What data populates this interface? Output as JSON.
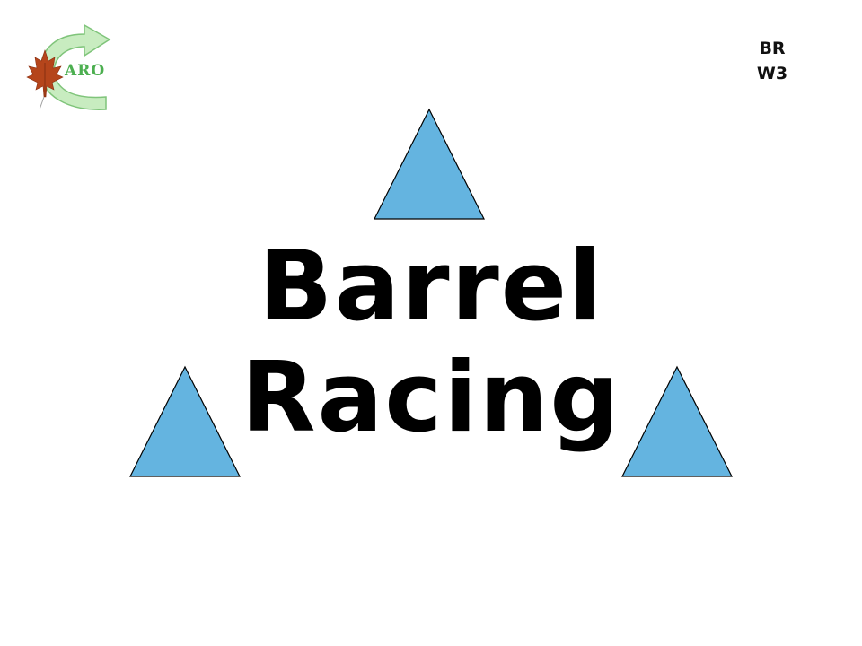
{
  "logo": {
    "text": "ARO",
    "leaf_color": "#b5451b",
    "arrow_color": "#c8ecc0",
    "arrow_stroke": "#7fc47a",
    "text_color": "#4caf50"
  },
  "code": {
    "line1": "BR",
    "line2": "W3"
  },
  "title": {
    "line1": "Barrel",
    "line2": "Racing"
  },
  "barrels": {
    "fill": "#64b4e0",
    "stroke": "#000000",
    "shape": "triangle",
    "count": 3
  }
}
